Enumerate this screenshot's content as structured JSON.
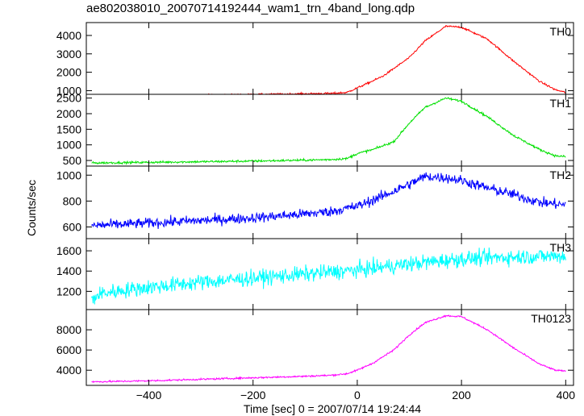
{
  "title": "ae802038010_20070714192444_wam1_trn_4band_long.qdp",
  "xlabel": "Time [sec] 0 = 2007/07/14 19:24:44",
  "ylabel": "Counts/sec",
  "chart_data": {
    "type": "line",
    "title": "ae802038010_20070714192444_wam1_trn_4band_long.qdp",
    "xlabel": "Time [sec] 0 = 2007/07/14 19:24:44",
    "ylabel": "Counts/sec",
    "xlim": [
      -520,
      415
    ],
    "x_ticks": [
      -400,
      -200,
      0,
      200,
      400
    ],
    "grid": false,
    "panels": [
      {
        "name": "TH0",
        "color": "#ff0000",
        "ylim": [
          800,
          4700
        ],
        "y_ticks": [
          1000,
          2000,
          3000,
          4000
        ],
        "noise": 35,
        "points": [
          [
            -510,
            700
          ],
          [
            -400,
            730
          ],
          [
            -300,
            760
          ],
          [
            -200,
            790
          ],
          [
            -100,
            830
          ],
          [
            -50,
            850
          ],
          [
            -20,
            900
          ],
          [
            0,
            1150
          ],
          [
            20,
            1400
          ],
          [
            50,
            1800
          ],
          [
            100,
            2800
          ],
          [
            130,
            3700
          ],
          [
            170,
            4500
          ],
          [
            200,
            4450
          ],
          [
            250,
            3800
          ],
          [
            300,
            2600
          ],
          [
            350,
            1500
          ],
          [
            380,
            1050
          ],
          [
            400,
            900
          ]
        ]
      },
      {
        "name": "TH1",
        "color": "#00e000",
        "ylim": [
          320,
          2620
        ],
        "y_ticks": [
          500,
          1000,
          1500,
          2000,
          2500
        ],
        "noise": 25,
        "points": [
          [
            -510,
            420
          ],
          [
            -400,
            440
          ],
          [
            -300,
            460
          ],
          [
            -200,
            480
          ],
          [
            -100,
            510
          ],
          [
            -50,
            530
          ],
          [
            -20,
            560
          ],
          [
            0,
            720
          ],
          [
            30,
            850
          ],
          [
            70,
            1100
          ],
          [
            100,
            1700
          ],
          [
            130,
            2200
          ],
          [
            170,
            2500
          ],
          [
            200,
            2400
          ],
          [
            250,
            1900
          ],
          [
            300,
            1300
          ],
          [
            350,
            850
          ],
          [
            380,
            650
          ],
          [
            400,
            620
          ]
        ]
      },
      {
        "name": "TH2",
        "color": "#0000ff",
        "ylim": [
          510,
          1070
        ],
        "y_ticks": [
          600,
          800,
          1000
        ],
        "noise": 28,
        "points": [
          [
            -510,
            610
          ],
          [
            -400,
            630
          ],
          [
            -300,
            650
          ],
          [
            -200,
            670
          ],
          [
            -100,
            700
          ],
          [
            -50,
            720
          ],
          [
            0,
            760
          ],
          [
            50,
            840
          ],
          [
            100,
            930
          ],
          [
            130,
            990
          ],
          [
            170,
            980
          ],
          [
            200,
            960
          ],
          [
            250,
            900
          ],
          [
            300,
            850
          ],
          [
            350,
            790
          ],
          [
            400,
            770
          ]
        ]
      },
      {
        "name": "TH3",
        "color": "#00ffff",
        "ylim": [
          1020,
          1720
        ],
        "y_ticks": [
          1200,
          1400,
          1600
        ],
        "noise": 55,
        "points": [
          [
            -510,
            1120
          ],
          [
            -490,
            1180
          ],
          [
            -450,
            1210
          ],
          [
            -400,
            1240
          ],
          [
            -300,
            1290
          ],
          [
            -200,
            1330
          ],
          [
            -100,
            1370
          ],
          [
            0,
            1410
          ],
          [
            100,
            1470
          ],
          [
            200,
            1520
          ],
          [
            300,
            1540
          ],
          [
            400,
            1550
          ]
        ]
      },
      {
        "name": "TH0123",
        "color": "#ff00ff",
        "ylim": [
          2500,
          10000
        ],
        "y_ticks": [
          4000,
          6000,
          8000
        ],
        "noise": 60,
        "points": [
          [
            -510,
            2850
          ],
          [
            -400,
            2950
          ],
          [
            -300,
            3100
          ],
          [
            -200,
            3250
          ],
          [
            -100,
            3400
          ],
          [
            -50,
            3500
          ],
          [
            -20,
            3650
          ],
          [
            0,
            4000
          ],
          [
            30,
            4700
          ],
          [
            70,
            6000
          ],
          [
            100,
            7500
          ],
          [
            130,
            8700
          ],
          [
            170,
            9400
          ],
          [
            200,
            9300
          ],
          [
            250,
            8000
          ],
          [
            300,
            6200
          ],
          [
            350,
            4600
          ],
          [
            380,
            4000
          ],
          [
            400,
            3900
          ]
        ]
      }
    ]
  }
}
